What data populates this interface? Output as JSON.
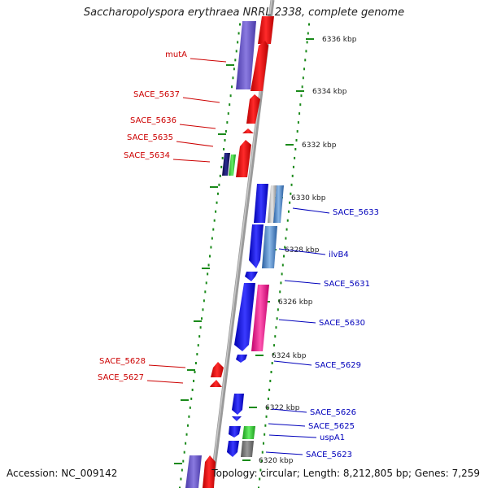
{
  "title": "Saccharopolyspora erythraea NRRL 2338, complete genome",
  "accession": "Accession: NC_009142",
  "topology": "Topology: circular; Length: 8,212,805 bp; Genes: 7,259",
  "scale_unit": "kbp",
  "ticks": [
    "6336 kbp",
    "6334 kbp",
    "6332 kbp",
    "6330 kbp",
    "6328 kbp",
    "6326 kbp",
    "6324 kbp",
    "6322 kbp",
    "6320 kbp"
  ],
  "colors": {
    "reverse_label": "#cc0000",
    "forward_label": "#0000bb",
    "gene_red": "#ee0000",
    "gene_blue": "#1a1aee",
    "gene_purple": "#6a5acd",
    "gene_green": "#33cc33",
    "gene_navy": "#101060",
    "gene_magenta": "#ee1199",
    "gene_steel": "#4a86c8",
    "gene_gray": "#777777",
    "gene_silver": "#b8b8b8",
    "backbone": "#8a8a8a",
    "dots": "#1a8a1a"
  },
  "reverse_genes": [
    "mutA",
    "SACE_5637",
    "SACE_5636",
    "SACE_5635",
    "SACE_5634",
    "SACE_5628",
    "SACE_5627"
  ],
  "forward_genes": [
    "SACE_5633",
    "ilvB4",
    "SACE_5631",
    "SACE_5630",
    "SACE_5629",
    "SACE_5626",
    "SACE_5625",
    "uspA1",
    "SACE_5623"
  ]
}
